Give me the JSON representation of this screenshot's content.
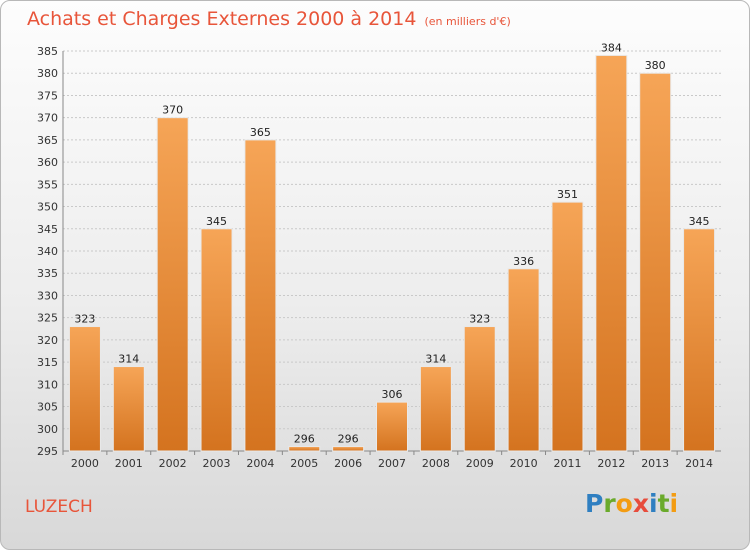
{
  "header": {
    "title": "Achats et Charges Externes 2000 à 2014",
    "subtitle": "(en milliers d'€)"
  },
  "footer": {
    "commune": "LUZECH",
    "logo_letters": [
      "P",
      "r",
      "o",
      "x",
      "i",
      "t",
      "i"
    ],
    "logo_colors": [
      "#2f7fc1",
      "#6aaa2b",
      "#f39c12",
      "#e74c3c",
      "#2f7fc1",
      "#6aaa2b",
      "#f39c12"
    ]
  },
  "colors": {
    "bar_light": "#f6a557",
    "bar_dark": "#d4731f",
    "title": "#e8553a"
  },
  "chart_data": {
    "type": "bar",
    "categories": [
      "2000",
      "2001",
      "2002",
      "2003",
      "2004",
      "2005",
      "2006",
      "2007",
      "2008",
      "2009",
      "2010",
      "2011",
      "2012",
      "2013",
      "2014"
    ],
    "values": [
      323,
      314,
      370,
      345,
      365,
      296,
      296,
      306,
      314,
      323,
      336,
      351,
      384,
      380,
      345
    ],
    "title": "Achats et Charges Externes 2000 à 2014",
    "xlabel": "",
    "ylabel": "",
    "ylim": [
      295,
      385
    ],
    "yticks": [
      295,
      300,
      305,
      310,
      315,
      320,
      325,
      330,
      335,
      340,
      345,
      350,
      355,
      360,
      365,
      370,
      375,
      380,
      385
    ],
    "grid": true,
    "legend": "none"
  }
}
